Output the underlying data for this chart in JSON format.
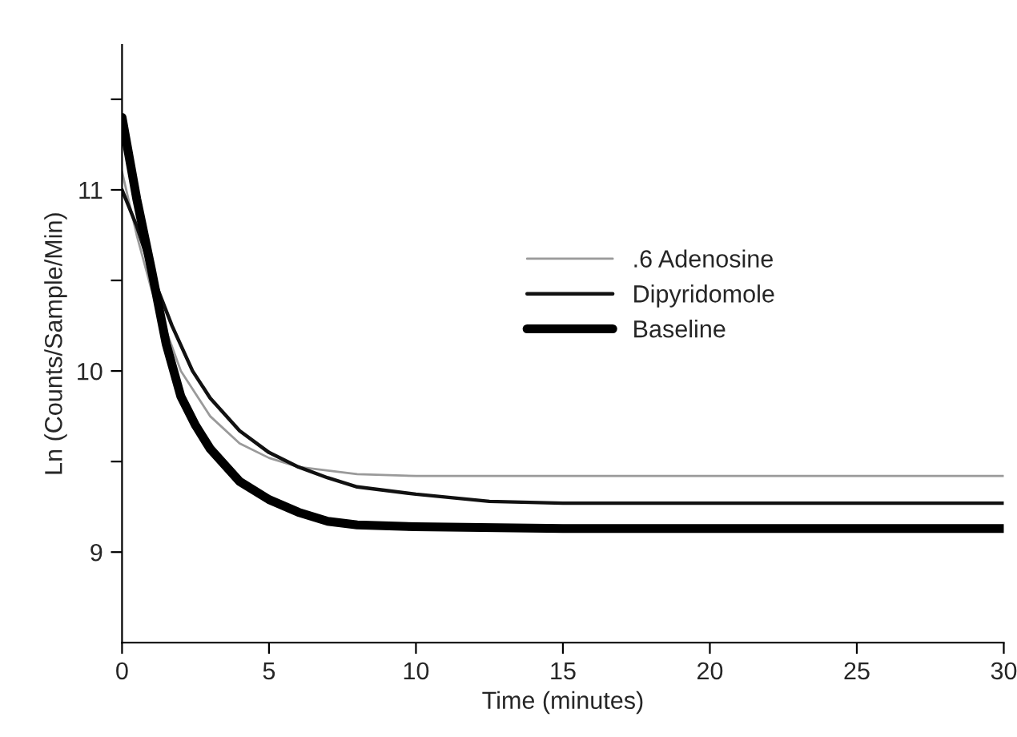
{
  "chart_data": {
    "type": "line",
    "xlabel": "Time (minutes)",
    "ylabel": "Ln (Counts/Sample/Min)",
    "xlim": [
      0,
      30
    ],
    "xticks": [
      0,
      5,
      10,
      15,
      20,
      25,
      30
    ],
    "ylim": [
      8.5,
      11.8
    ],
    "yticks": [
      9,
      {
        "value": 9.5,
        "label": null
      },
      10,
      {
        "value": 10.5,
        "label": null
      },
      11,
      {
        "value": 11.5,
        "label": null
      }
    ],
    "grid": false,
    "legend": "center",
    "line_style": "solid",
    "marker": "none",
    "series": [
      {
        "name": ".6 Adenosine",
        "color": "#9a9a9a",
        "x": [
          0,
          0.5,
          1,
          2,
          3,
          4,
          5,
          6,
          8,
          10,
          12,
          15,
          20,
          25,
          30
        ],
        "values": [
          11.1,
          10.75,
          10.45,
          10.0,
          9.75,
          9.6,
          9.52,
          9.47,
          9.43,
          9.42,
          9.42,
          9.42,
          9.42,
          9.42,
          9.42
        ]
      },
      {
        "name": "Dipyridomole",
        "color": "#111111",
        "x": [
          0,
          0.5,
          1.1,
          1.7,
          2.4,
          3,
          4,
          5,
          6,
          7,
          8,
          10,
          12.5,
          15,
          20,
          25,
          30
        ],
        "values": [
          11.0,
          10.8,
          10.5,
          10.25,
          10.0,
          9.85,
          9.67,
          9.55,
          9.47,
          9.41,
          9.36,
          9.32,
          9.28,
          9.27,
          9.27,
          9.27,
          9.27
        ]
      },
      {
        "name": "Baseline",
        "color": "#000000",
        "x": [
          0,
          0.5,
          1,
          1.5,
          2,
          2.5,
          3,
          4,
          5,
          6,
          7,
          8,
          10,
          15,
          20,
          25,
          30
        ],
        "values": [
          11.4,
          10.95,
          10.56,
          10.15,
          9.86,
          9.7,
          9.57,
          9.39,
          9.29,
          9.22,
          9.17,
          9.15,
          9.14,
          9.13,
          9.13,
          9.13,
          9.13
        ]
      }
    ]
  }
}
